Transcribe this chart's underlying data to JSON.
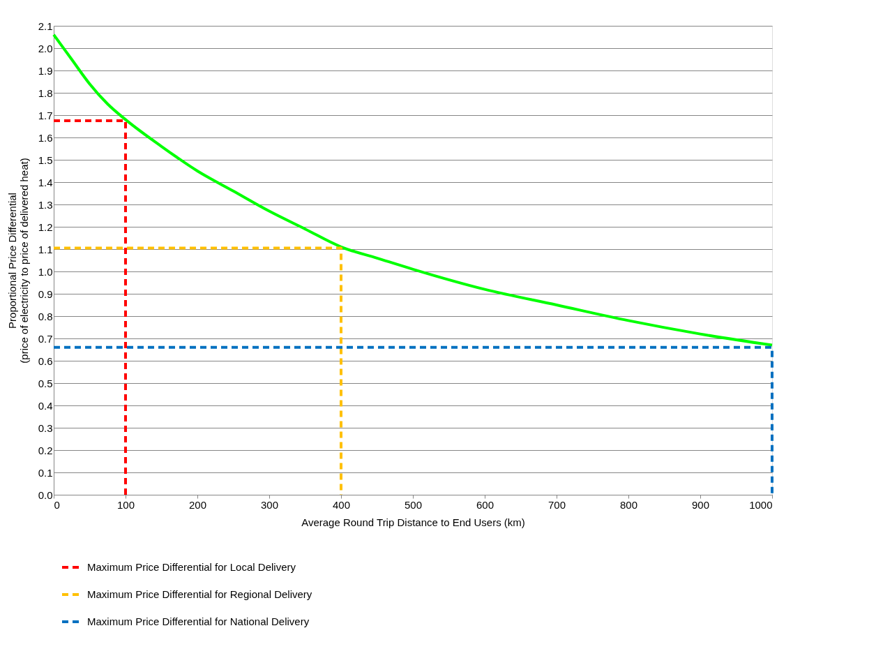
{
  "chart_data": {
    "type": "line",
    "xlabel": "Average Round Trip Distance to End Users (km)",
    "ylabel": "Proportional Price Differential\n(price of electricity to price of delivered heat)",
    "xlim": [
      0,
      1000
    ],
    "xticks": [
      0,
      100,
      200,
      300,
      400,
      500,
      600,
      700,
      800,
      900,
      1000
    ],
    "ylim": [
      0,
      2.1
    ],
    "yticks": [
      {
        "value": 0,
        "label": "0.0"
      },
      0.1,
      0.2,
      0.3,
      0.4,
      0.5,
      0.6,
      0.7,
      0.8,
      0.9,
      {
        "value": 1,
        "label": "1.0"
      },
      1.1,
      1.2,
      1.3,
      1.4,
      1.5,
      1.6,
      1.7,
      1.8,
      1.9,
      {
        "value": 2,
        "label": "2.0"
      },
      2.1
    ],
    "grid": "y",
    "legend": "bottom",
    "series": [
      {
        "color": "#00ff00",
        "line_style": "solid",
        "x": [
          0,
          25,
          50,
          75,
          100,
          150,
          200,
          250,
          300,
          350,
          400,
          450,
          500,
          600,
          700,
          800,
          900,
          1000
        ],
        "values": [
          2.06,
          1.95,
          1.84,
          1.75,
          1.68,
          1.56,
          1.45,
          1.36,
          1.27,
          1.19,
          1.11,
          1.06,
          1.01,
          0.92,
          0.85,
          0.78,
          0.72,
          0.67
        ]
      },
      {
        "name": "Maximum Price Differential for Local Delivery",
        "color": "#ff0000",
        "line_style": "dashed",
        "x": [
          0,
          100,
          100
        ],
        "values": [
          1.675,
          1.675,
          0
        ]
      },
      {
        "name": "Maximum Price Differential for Regional Delivery",
        "color": "#ffc000",
        "line_style": "dashed",
        "x": [
          0,
          400,
          400
        ],
        "values": [
          1.105,
          1.105,
          0
        ]
      },
      {
        "name": "Maximum Price Differential for National Delivery",
        "color": "#0070c0",
        "line_style": "dashed",
        "x": [
          0,
          1000,
          1000
        ],
        "values": [
          0.66,
          0.66,
          0
        ]
      }
    ]
  }
}
